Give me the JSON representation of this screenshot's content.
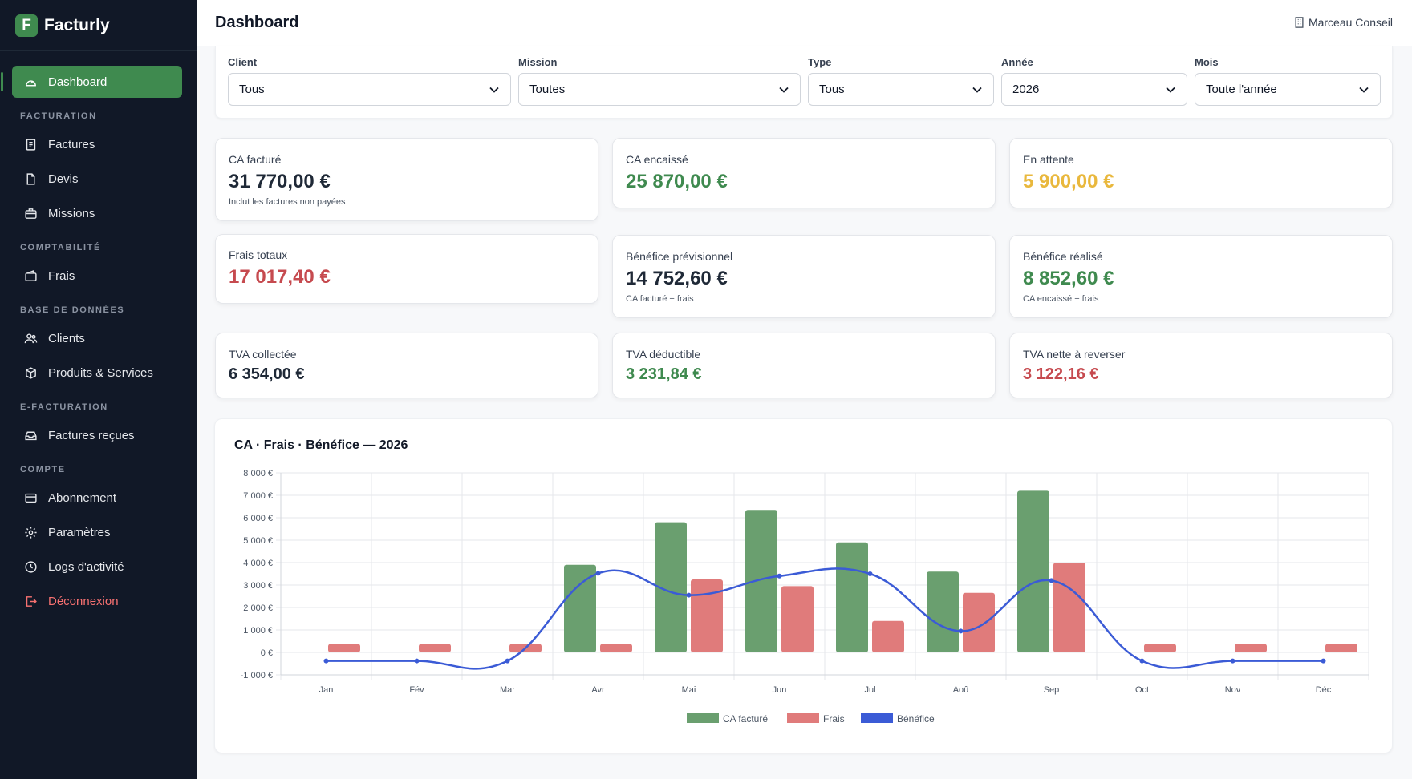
{
  "app": {
    "name": "Facturly",
    "logo_letter": "F"
  },
  "header": {
    "title": "Dashboard",
    "company": "Marceau Conseil"
  },
  "sidebar": {
    "dashboard": "Dashboard",
    "sections": {
      "facturation": "FACTURATION",
      "comptabilite": "COMPTABILITÉ",
      "base": "BASE DE DONNÉES",
      "efacturation": "E-FACTURATION",
      "compte": "COMPTE"
    },
    "items": {
      "factures": "Factures",
      "devis": "Devis",
      "missions": "Missions",
      "frais": "Frais",
      "clients": "Clients",
      "produits": "Produits & Services",
      "factures_recues": "Factures reçues",
      "abonnement": "Abonnement",
      "parametres": "Paramètres",
      "logs": "Logs d'activité",
      "deconnexion": "Déconnexion"
    }
  },
  "filters": {
    "client": {
      "label": "Client",
      "value": "Tous"
    },
    "mission": {
      "label": "Mission",
      "value": "Toutes"
    },
    "type": {
      "label": "Type",
      "value": "Tous"
    },
    "annee": {
      "label": "Année",
      "value": "2026"
    },
    "mois": {
      "label": "Mois",
      "value": "Toute l'année"
    }
  },
  "stats": {
    "ca_facture": {
      "label": "CA facturé",
      "value": "31 770,00 €",
      "sub": "Inclut les factures non payées"
    },
    "ca_encaisse": {
      "label": "CA encaissé",
      "value": "25 870,00 €"
    },
    "en_attente": {
      "label": "En attente",
      "value": "5 900,00 €"
    },
    "frais_totaux": {
      "label": "Frais totaux",
      "value": "17 017,40 €"
    },
    "benefice_prev": {
      "label": "Bénéfice prévisionnel",
      "value": "14 752,60 €",
      "sub": "CA facturé − frais"
    },
    "benefice_real": {
      "label": "Bénéfice réalisé",
      "value": "8 852,60 €",
      "sub": "CA encaissé − frais"
    },
    "tva_collectee": {
      "label": "TVA collectée",
      "value": "6 354,00 €"
    },
    "tva_deductible": {
      "label": "TVA déductible",
      "value": "3 231,84 €"
    },
    "tva_nette": {
      "label": "TVA nette à reverser",
      "value": "3 122,16 €"
    }
  },
  "colors": {
    "green": "#3f8a4f",
    "yellow": "#e9b83d",
    "red": "#c64a4f",
    "bar_green": "#6a9f6f",
    "bar_red": "#e07b7b",
    "line_blue": "#3b5bd6"
  },
  "chart_data": {
    "type": "bar",
    "title": "CA · Frais · Bénéfice — 2026",
    "categories": [
      "Jan",
      "Fév",
      "Mar",
      "Avr",
      "Mai",
      "Jun",
      "Jul",
      "Aoû",
      "Sep",
      "Oct",
      "Nov",
      "Déc"
    ],
    "series": [
      {
        "name": "CA facturé",
        "kind": "bar",
        "color": "#6a9f6f",
        "values": [
          0,
          0,
          0,
          3900,
          5800,
          6350,
          4900,
          3600,
          7200,
          0,
          0,
          0
        ]
      },
      {
        "name": "Frais",
        "kind": "bar",
        "color": "#e07b7b",
        "values": [
          380,
          380,
          380,
          380,
          3250,
          2950,
          1400,
          2650,
          4000,
          380,
          380,
          380
        ]
      },
      {
        "name": "Bénéfice",
        "kind": "line",
        "color": "#3b5bd6",
        "values": [
          -380,
          -380,
          -380,
          3520,
          2550,
          3400,
          3500,
          950,
          3200,
          -380,
          -380,
          -380
        ]
      }
    ],
    "ylim": [
      -1000,
      8000
    ],
    "yticks": [
      -1000,
      0,
      1000,
      2000,
      3000,
      4000,
      5000,
      6000,
      7000,
      8000
    ],
    "ytick_labels": [
      "-1 000 €",
      "0 €",
      "1 000 €",
      "2 000 €",
      "3 000 €",
      "4 000 €",
      "5 000 €",
      "6 000 €",
      "7 000 €",
      "8 000 €"
    ],
    "grid": true,
    "legend": "bottom-center"
  }
}
